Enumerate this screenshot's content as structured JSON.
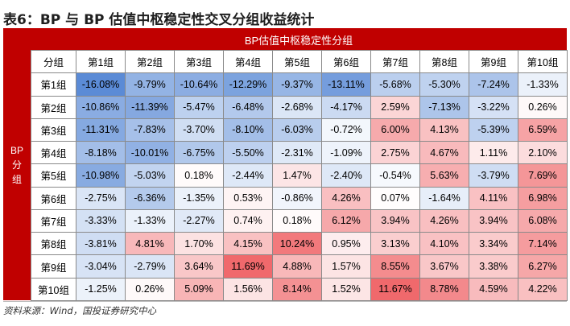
{
  "title": "表6：BP 与 BP 估值中枢稳定性交叉分组收益统计",
  "table": {
    "header_top": "BP估值中枢稳定性分组",
    "side_label": [
      "BP",
      "分",
      "组"
    ],
    "corner_label": "分组",
    "columns": [
      "第1组",
      "第2组",
      "第3组",
      "第4组",
      "第5组",
      "第6组",
      "第7组",
      "第8组",
      "第9组",
      "第10组"
    ],
    "rows": [
      {
        "label": "第1组",
        "cells": [
          "-16.08%",
          "-9.79%",
          "-10.64%",
          "-12.29%",
          "-9.37%",
          "-13.11%",
          "-5.68%",
          "-5.30%",
          "-7.24%",
          "-1.33%"
        ]
      },
      {
        "label": "第2组",
        "cells": [
          "-10.86%",
          "-11.39%",
          "-5.47%",
          "-6.48%",
          "-2.68%",
          "-4.17%",
          "2.59%",
          "-7.13%",
          "-3.22%",
          "0.26%"
        ]
      },
      {
        "label": "第3组",
        "cells": [
          "-11.31%",
          "-7.83%",
          "-3.70%",
          "-8.10%",
          "-6.03%",
          "-0.72%",
          "6.00%",
          "4.13%",
          "-5.39%",
          "6.59%"
        ]
      },
      {
        "label": "第4组",
        "cells": [
          "-8.18%",
          "-10.01%",
          "-6.75%",
          "-5.50%",
          "-2.31%",
          "-1.09%",
          "2.75%",
          "4.67%",
          "1.11%",
          "2.10%"
        ]
      },
      {
        "label": "第5组",
        "cells": [
          "-10.98%",
          "-5.03%",
          "0.18%",
          "-2.44%",
          "1.47%",
          "-2.40%",
          "-0.54%",
          "5.63%",
          "-3.79%",
          "7.69%"
        ]
      },
      {
        "label": "第6组",
        "cells": [
          "-2.75%",
          "-6.36%",
          "-1.35%",
          "0.53%",
          "-0.86%",
          "4.26%",
          "0.07%",
          "-1.64%",
          "4.11%",
          "6.98%"
        ]
      },
      {
        "label": "第7组",
        "cells": [
          "-3.33%",
          "-1.33%",
          "-2.27%",
          "0.74%",
          "0.18%",
          "6.12%",
          "3.94%",
          "4.26%",
          "3.94%",
          "6.08%"
        ]
      },
      {
        "label": "第8组",
        "cells": [
          "-3.81%",
          "4.81%",
          "1.70%",
          "4.15%",
          "10.24%",
          "0.95%",
          "3.13%",
          "4.10%",
          "3.34%",
          "7.14%"
        ]
      },
      {
        "label": "第9组",
        "cells": [
          "-3.04%",
          "-2.79%",
          "3.64%",
          "11.69%",
          "4.88%",
          "1.57%",
          "8.55%",
          "3.67%",
          "3.38%",
          "6.27%"
        ]
      },
      {
        "label": "第10组",
        "cells": [
          "-1.25%",
          "0.26%",
          "5.09%",
          "1.56%",
          "8.14%",
          "1.52%",
          "11.67%",
          "8.78%",
          "4.59%",
          "4.22%"
        ]
      }
    ],
    "colors": {
      "header_red": "#c00000",
      "negative_extreme": "#5b8bd6",
      "positive_extreme": "#f0696c",
      "neutral": "#ffffff"
    }
  },
  "source": "资料来源：Wind，国投证券研究中心"
}
